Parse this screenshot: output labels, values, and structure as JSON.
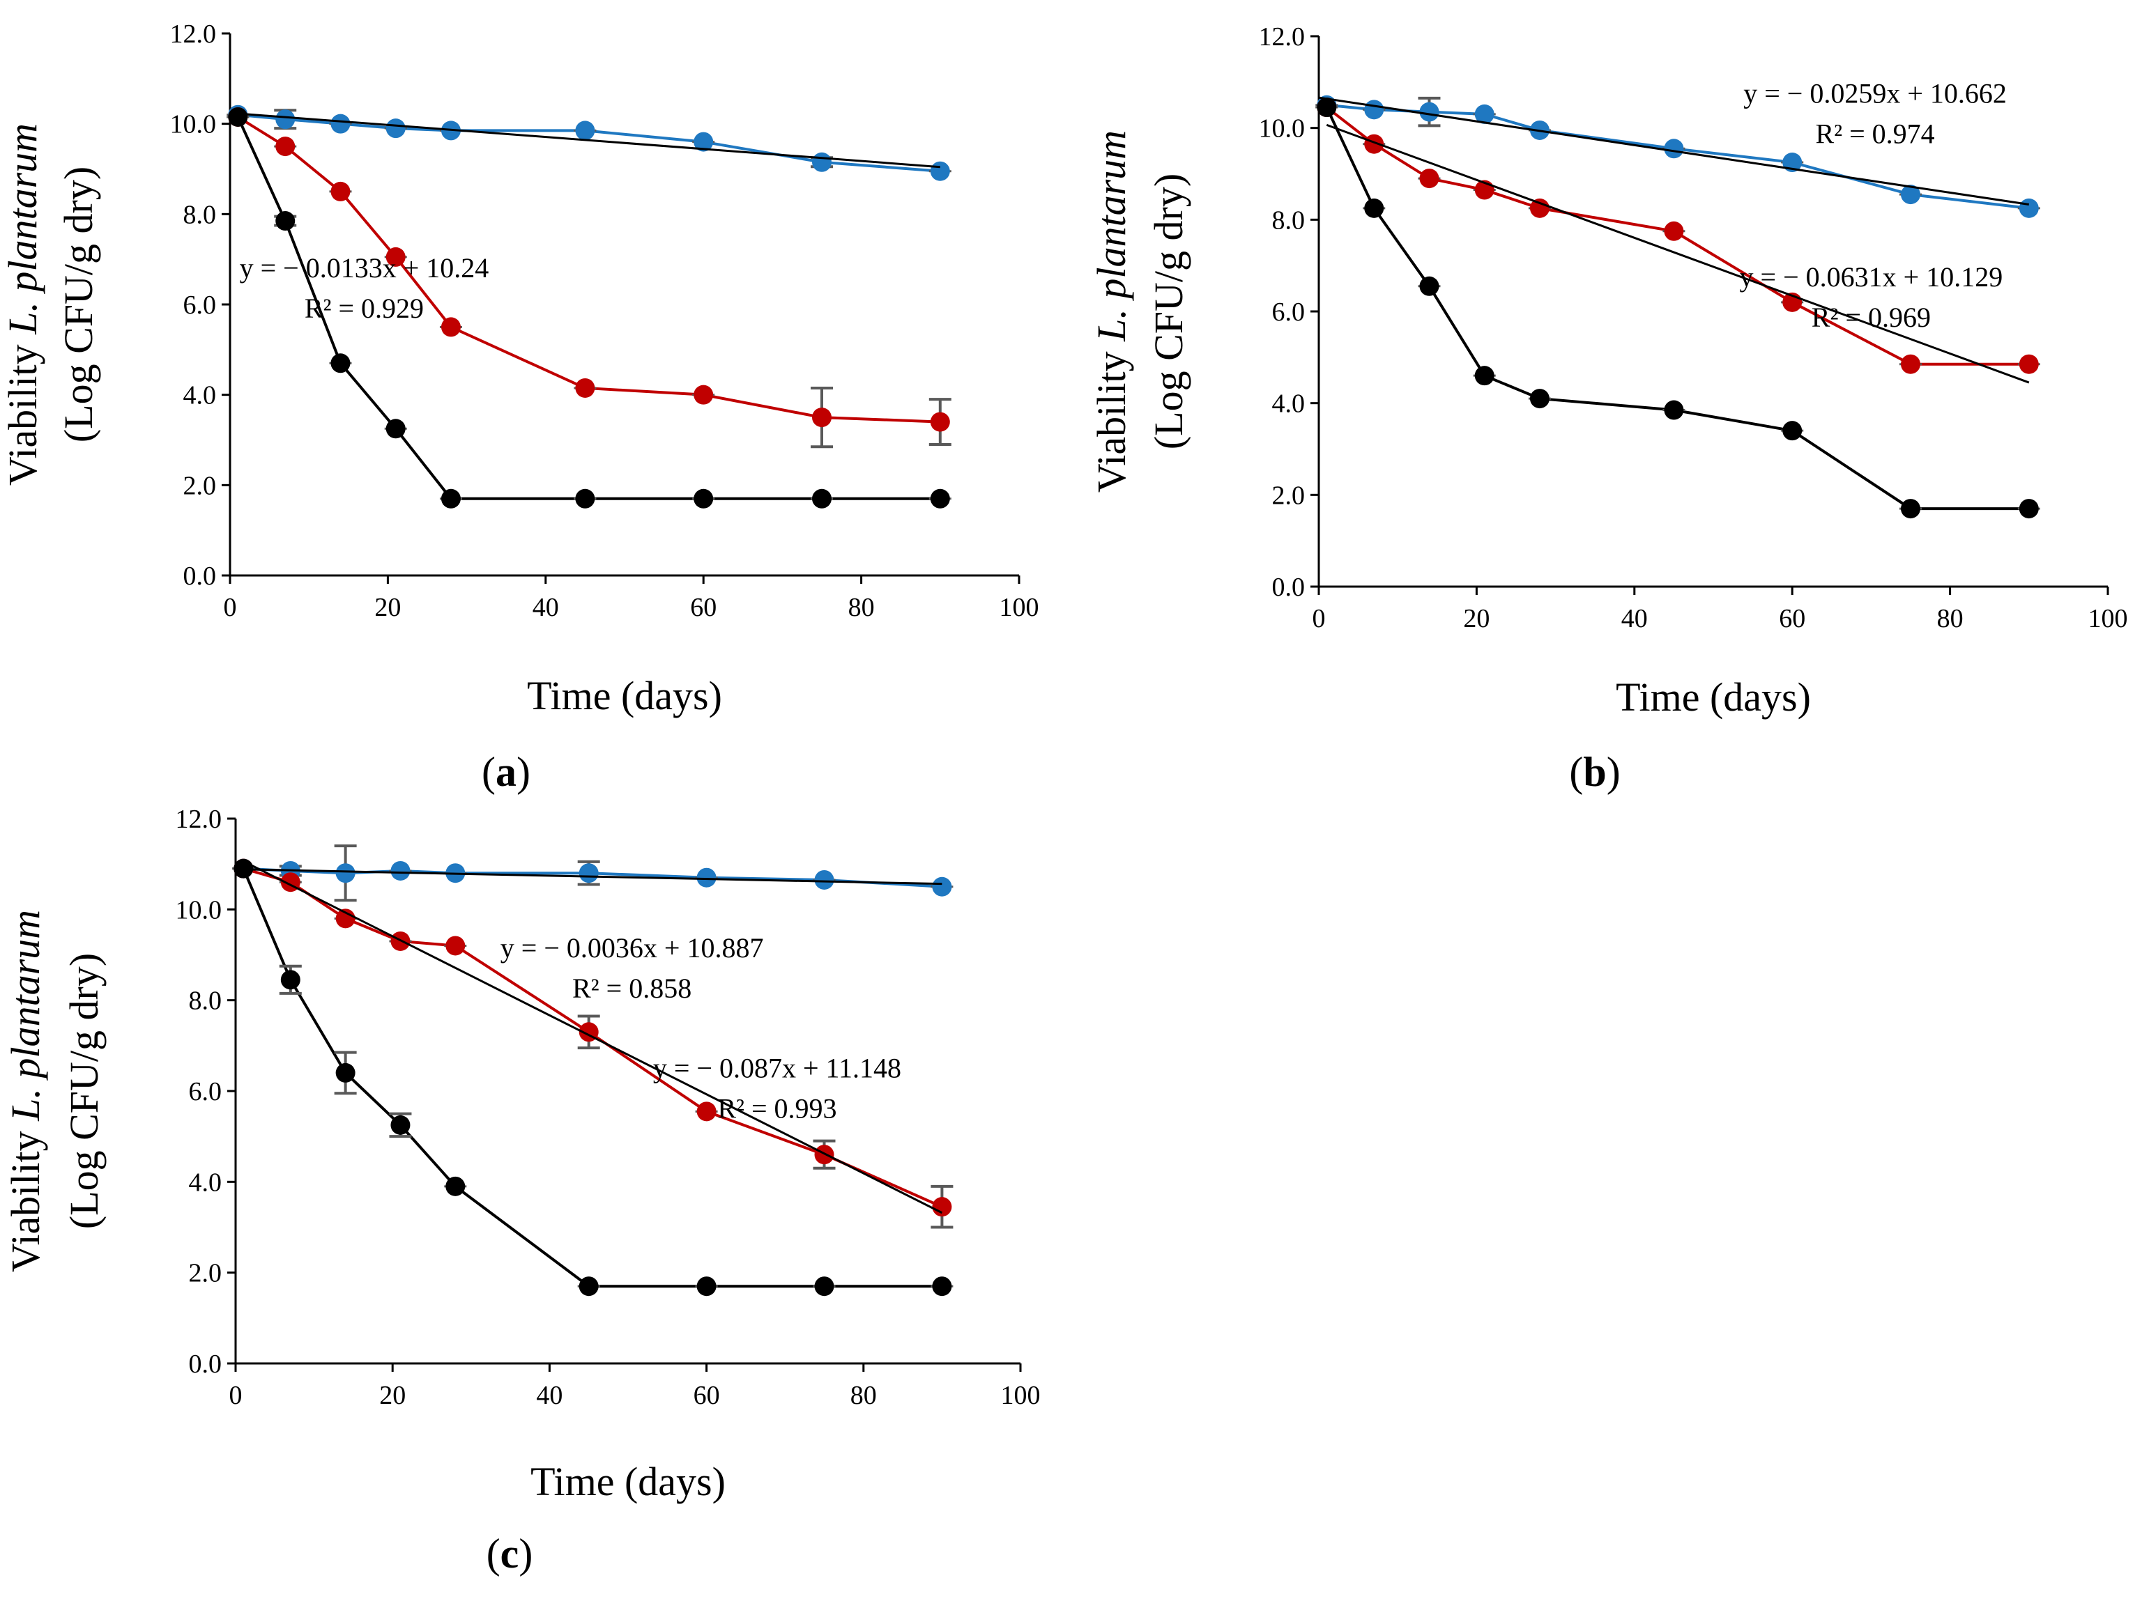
{
  "colors": {
    "blue": "#1f78c1",
    "red": "#c00000",
    "black": "#000000",
    "fit_line": "#000000",
    "error_bar": "#595959"
  },
  "chart_data": [
    {
      "id": "a",
      "type": "line",
      "panel_label": "a",
      "xlabel": "Time (days)",
      "ylabel_prefix": "Viability ",
      "ylabel_italic": "L. plantarum",
      "ylabel_line2": "(Log CFU/g dry)",
      "xlim": [
        0,
        100
      ],
      "ylim": [
        0,
        12
      ],
      "xticks": [
        0,
        20,
        40,
        60,
        80,
        100
      ],
      "xtick_labels": [
        "0",
        "20",
        "40",
        "60",
        "80",
        "100"
      ],
      "yticks": [
        0,
        2,
        4,
        6,
        8,
        10,
        12
      ],
      "ytick_labels": [
        "0.0",
        "2.0",
        "4.0",
        "6.0",
        "8.0",
        "10.0",
        "12.0"
      ],
      "grid": false,
      "legend": "none",
      "series": [
        {
          "name": "blue",
          "color": "blue",
          "x": [
            1,
            7,
            14,
            21,
            28,
            45,
            60,
            75,
            90
          ],
          "y": [
            10.2,
            10.1,
            10.0,
            9.9,
            9.85,
            9.85,
            9.6,
            9.15,
            8.95
          ],
          "err": [
            0.05,
            0.2,
            0.05,
            0.05,
            0.05,
            0.05,
            0.05,
            0.1,
            0.05
          ]
        },
        {
          "name": "red",
          "color": "red",
          "x": [
            1,
            7,
            14,
            21,
            28,
            45,
            60,
            75,
            90
          ],
          "y": [
            10.15,
            9.5,
            8.5,
            7.05,
            5.5,
            4.15,
            4.0,
            3.5,
            3.4
          ],
          "err": [
            0.05,
            0.05,
            0.05,
            0.05,
            0.05,
            0.05,
            0.05,
            0.65,
            0.5
          ]
        },
        {
          "name": "black",
          "color": "black",
          "x": [
            1,
            7,
            14,
            21,
            28,
            45,
            60,
            75,
            90
          ],
          "y": [
            10.15,
            7.85,
            4.7,
            3.25,
            1.7,
            1.7,
            1.7,
            1.7,
            1.7
          ],
          "err": [
            0.05,
            0.1,
            0.05,
            0.05,
            0.05,
            0.05,
            0.05,
            0.05,
            0.05
          ]
        }
      ],
      "fits": [
        {
          "color": "fit_line",
          "slope": -0.0133,
          "intercept": 10.24,
          "x_range": [
            1,
            90
          ],
          "equation": "y = − 0.0133x + 10.24",
          "r2": "R² = 0.929",
          "label_anchor": [
            17,
            6.6
          ]
        }
      ]
    },
    {
      "id": "b",
      "type": "line",
      "panel_label": "b",
      "xlabel": "Time (days)",
      "ylabel_prefix": "Viability ",
      "ylabel_italic": "L. plantarum",
      "ylabel_line2": "(Log CFU/g dry)",
      "xlim": [
        0,
        100
      ],
      "ylim": [
        0,
        12
      ],
      "xticks": [
        0,
        20,
        40,
        60,
        80,
        100
      ],
      "xtick_labels": [
        "0",
        "20",
        "40",
        "60",
        "80",
        "100"
      ],
      "yticks": [
        0,
        2,
        4,
        6,
        8,
        10,
        12
      ],
      "ytick_labels": [
        "0.0",
        "2.0",
        "4.0",
        "6.0",
        "8.0",
        "10.0",
        "12.0"
      ],
      "grid": false,
      "legend": "none",
      "series": [
        {
          "name": "blue",
          "color": "blue",
          "x": [
            1,
            7,
            14,
            21,
            28,
            45,
            60,
            75,
            90
          ],
          "y": [
            10.5,
            10.4,
            10.35,
            10.3,
            9.95,
            9.55,
            9.25,
            8.55,
            8.25
          ],
          "err": [
            0.05,
            0.05,
            0.3,
            0.05,
            0.05,
            0.05,
            0.05,
            0.05,
            0.05
          ]
        },
        {
          "name": "red",
          "color": "red",
          "x": [
            1,
            7,
            14,
            21,
            28,
            45,
            60,
            75,
            90
          ],
          "y": [
            10.45,
            9.65,
            8.9,
            8.65,
            8.25,
            7.75,
            6.2,
            4.85,
            4.85
          ],
          "err": [
            0.05,
            0.05,
            0.05,
            0.05,
            0.05,
            0.05,
            0.05,
            0.05,
            0.05
          ]
        },
        {
          "name": "black",
          "color": "black",
          "x": [
            1,
            7,
            14,
            21,
            28,
            45,
            60,
            75,
            90
          ],
          "y": [
            10.45,
            8.25,
            6.55,
            4.6,
            4.1,
            3.85,
            3.4,
            1.7,
            1.7
          ],
          "err": [
            0.05,
            0.05,
            0.05,
            0.05,
            0.05,
            0.05,
            0.05,
            0.05,
            0.05
          ]
        }
      ],
      "fits": [
        {
          "color": "fit_line",
          "slope": -0.0259,
          "intercept": 10.662,
          "x_range": [
            0,
            90
          ],
          "equation": "y = − 0.0259x + 10.662",
          "r2": "R² = 0.974",
          "label_anchor": [
            70.5,
            10.55
          ]
        },
        {
          "color": "fit_line",
          "slope": -0.0631,
          "intercept": 10.129,
          "x_range": [
            1,
            90
          ],
          "equation": "y = − 0.0631x + 10.129",
          "r2": "R² = 0.969",
          "label_anchor": [
            70,
            6.55
          ]
        }
      ]
    },
    {
      "id": "c",
      "type": "line",
      "panel_label": "c",
      "xlabel": "Time (days)",
      "ylabel_prefix": "Viability ",
      "ylabel_italic": "L. plantarum",
      "ylabel_line2": "(Log CFU/g dry)",
      "xlim": [
        0,
        100
      ],
      "ylim": [
        0,
        12
      ],
      "xticks": [
        0,
        20,
        40,
        60,
        80,
        100
      ],
      "xtick_labels": [
        "0",
        "20",
        "40",
        "60",
        "80",
        "100"
      ],
      "yticks": [
        0,
        2,
        4,
        6,
        8,
        10,
        12
      ],
      "ytick_labels": [
        "0.0",
        "2.0",
        "4.0",
        "6.0",
        "8.0",
        "10.0",
        "12.0"
      ],
      "grid": false,
      "legend": "none",
      "series": [
        {
          "name": "blue",
          "color": "blue",
          "x": [
            1,
            7,
            14,
            21,
            28,
            45,
            60,
            75,
            90
          ],
          "y": [
            10.9,
            10.85,
            10.8,
            10.85,
            10.8,
            10.8,
            10.7,
            10.65,
            10.5
          ],
          "err": [
            0.05,
            0.1,
            0.6,
            0.05,
            0.05,
            0.25,
            0.05,
            0.05,
            0.05
          ]
        },
        {
          "name": "red",
          "color": "red",
          "x": [
            1,
            7,
            14,
            21,
            28,
            45,
            60,
            75,
            90
          ],
          "y": [
            10.9,
            10.6,
            9.8,
            9.3,
            9.2,
            7.3,
            5.55,
            4.6,
            3.45
          ],
          "err": [
            0.05,
            0.05,
            0.05,
            0.05,
            0.05,
            0.35,
            0.05,
            0.3,
            0.45
          ]
        },
        {
          "name": "black",
          "color": "black",
          "x": [
            1,
            7,
            14,
            21,
            28,
            45,
            60,
            75,
            90
          ],
          "y": [
            10.9,
            8.45,
            6.4,
            5.25,
            3.9,
            1.7,
            1.7,
            1.7,
            1.7
          ],
          "err": [
            0.05,
            0.3,
            0.45,
            0.25,
            0.05,
            0.05,
            0.05,
            0.05,
            0.05
          ]
        }
      ],
      "fits": [
        {
          "color": "fit_line",
          "slope": -0.0036,
          "intercept": 10.887,
          "x_range": [
            1,
            90
          ],
          "equation": "y = − 0.0036x + 10.887",
          "r2": "R² = 0.858",
          "label_anchor": [
            50.5,
            8.95
          ]
        },
        {
          "color": "fit_line",
          "slope": -0.087,
          "intercept": 11.148,
          "x_range": [
            1,
            90
          ],
          "equation": "y = − 0.087x + 11.148",
          "r2": "R² = 0.993",
          "label_anchor": [
            69,
            6.3
          ]
        }
      ]
    }
  ]
}
